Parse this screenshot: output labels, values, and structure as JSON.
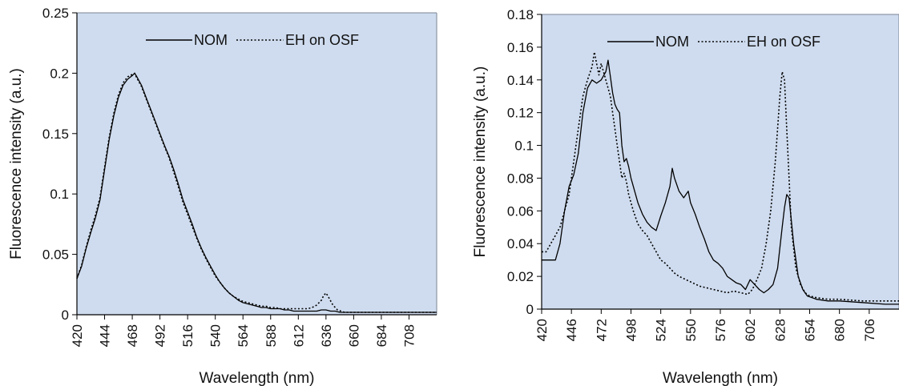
{
  "colors": {
    "plot_background": "#cfdcef",
    "line": "#000000",
    "frame": "#000000"
  },
  "chart_data": [
    {
      "type": "line",
      "title": "",
      "xlabel": "Wavelength (nm)",
      "ylabel": "Fluorescence intensity (a.u.)",
      "xlim": [
        420,
        732
      ],
      "ylim": [
        0,
        0.25
      ],
      "xticks": [
        420,
        444,
        468,
        492,
        516,
        540,
        564,
        588,
        612,
        636,
        660,
        684,
        708
      ],
      "xtick_labels": [
        "420",
        "444",
        "468",
        "492",
        "516",
        "540",
        "564",
        "588",
        "612",
        "636",
        "660",
        "684",
        "708"
      ],
      "yticks": [
        0,
        0.05,
        0.1,
        0.15,
        0.2,
        0.25
      ],
      "ytick_labels": [
        "0",
        "0.05",
        "0.1",
        "0.15",
        "0.2",
        "0.25"
      ],
      "legend": {
        "placement": "top-center",
        "entries": [
          "NOM",
          "EH on OSF"
        ]
      },
      "grid": false,
      "series": [
        {
          "name": "NOM",
          "style": "solid",
          "x": [
            420,
            424,
            428,
            432,
            436,
            440,
            444,
            448,
            452,
            456,
            460,
            464,
            468,
            470,
            472,
            476,
            480,
            484,
            488,
            492,
            496,
            500,
            504,
            508,
            512,
            516,
            520,
            524,
            528,
            532,
            536,
            540,
            544,
            548,
            552,
            556,
            560,
            564,
            568,
            572,
            576,
            580,
            584,
            588,
            592,
            596,
            600,
            604,
            608,
            612,
            616,
            620,
            624,
            628,
            632,
            636,
            640,
            644,
            648,
            652,
            660,
            680,
            700,
            720,
            732
          ],
          "y": [
            0.03,
            0.04,
            0.055,
            0.068,
            0.08,
            0.095,
            0.12,
            0.145,
            0.165,
            0.18,
            0.19,
            0.195,
            0.198,
            0.2,
            0.197,
            0.19,
            0.18,
            0.17,
            0.16,
            0.15,
            0.14,
            0.131,
            0.12,
            0.108,
            0.095,
            0.085,
            0.075,
            0.064,
            0.055,
            0.047,
            0.04,
            0.033,
            0.027,
            0.022,
            0.018,
            0.015,
            0.012,
            0.01,
            0.009,
            0.008,
            0.007,
            0.006,
            0.006,
            0.005,
            0.005,
            0.005,
            0.004,
            0.004,
            0.003,
            0.003,
            0.003,
            0.003,
            0.003,
            0.003,
            0.004,
            0.004,
            0.003,
            0.003,
            0.002,
            0.002,
            0.002,
            0.002,
            0.002,
            0.002,
            0.002
          ]
        },
        {
          "name": "EH on OSF",
          "style": "dotted",
          "x": [
            420,
            424,
            428,
            432,
            436,
            440,
            444,
            448,
            452,
            456,
            460,
            464,
            468,
            470,
            472,
            476,
            480,
            484,
            488,
            492,
            496,
            500,
            504,
            508,
            512,
            516,
            520,
            524,
            528,
            532,
            536,
            540,
            544,
            548,
            552,
            556,
            560,
            564,
            568,
            572,
            576,
            580,
            584,
            588,
            592,
            596,
            600,
            604,
            608,
            612,
            616,
            620,
            624,
            628,
            632,
            634,
            636,
            638,
            642,
            646,
            652,
            660,
            680,
            700,
            720,
            732
          ],
          "y": [
            0.03,
            0.041,
            0.056,
            0.07,
            0.082,
            0.097,
            0.122,
            0.147,
            0.167,
            0.182,
            0.192,
            0.197,
            0.199,
            0.2,
            0.196,
            0.189,
            0.179,
            0.169,
            0.159,
            0.149,
            0.139,
            0.13,
            0.118,
            0.106,
            0.093,
            0.083,
            0.073,
            0.063,
            0.054,
            0.046,
            0.039,
            0.032,
            0.027,
            0.022,
            0.018,
            0.015,
            0.013,
            0.011,
            0.01,
            0.009,
            0.008,
            0.007,
            0.007,
            0.006,
            0.006,
            0.005,
            0.005,
            0.005,
            0.005,
            0.005,
            0.005,
            0.005,
            0.006,
            0.008,
            0.012,
            0.016,
            0.018,
            0.015,
            0.008,
            0.004,
            0.002,
            0.002,
            0.002,
            0.002,
            0.002,
            0.002
          ]
        }
      ]
    },
    {
      "type": "line",
      "title": "",
      "xlabel": "Wavelength (nm)",
      "ylabel": "Fluorescence intensity (a.u.)",
      "xlim": [
        420,
        732
      ],
      "ylim": [
        0,
        0.18
      ],
      "xticks": [
        420,
        446,
        472,
        498,
        524,
        550,
        576,
        602,
        628,
        654,
        680,
        706
      ],
      "xtick_labels": [
        "420",
        "446",
        "472",
        "498",
        "524",
        "550",
        "576",
        "602",
        "628",
        "654",
        "680",
        "706"
      ],
      "yticks": [
        0,
        0.02,
        0.04,
        0.06,
        0.08,
        0.1,
        0.12,
        0.14,
        0.16,
        0.18
      ],
      "ytick_labels": [
        "0",
        "0.02",
        "0.04",
        "0.06",
        "0.08",
        "0.1",
        "0.12",
        "0.14",
        "0.16",
        "0.18"
      ],
      "legend": {
        "placement": "top-center",
        "entries": [
          "NOM",
          "EH on OSF"
        ]
      },
      "grid": false,
      "series": [
        {
          "name": "NOM",
          "style": "solid",
          "x": [
            420,
            424,
            428,
            432,
            436,
            440,
            444,
            448,
            452,
            456,
            460,
            464,
            468,
            472,
            476,
            478,
            480,
            482,
            484,
            486,
            488,
            490,
            492,
            494,
            496,
            498,
            500,
            504,
            508,
            512,
            516,
            520,
            524,
            528,
            532,
            534,
            536,
            540,
            544,
            546,
            548,
            550,
            554,
            558,
            562,
            566,
            570,
            574,
            578,
            582,
            586,
            590,
            594,
            598,
            602,
            606,
            610,
            614,
            618,
            622,
            626,
            630,
            632,
            634,
            636,
            640,
            644,
            648,
            652,
            656,
            660,
            670,
            680,
            700,
            720,
            732
          ],
          "y": [
            0.03,
            0.03,
            0.03,
            0.03,
            0.04,
            0.06,
            0.075,
            0.082,
            0.095,
            0.12,
            0.135,
            0.14,
            0.138,
            0.14,
            0.145,
            0.152,
            0.142,
            0.132,
            0.125,
            0.122,
            0.12,
            0.1,
            0.09,
            0.092,
            0.087,
            0.08,
            0.075,
            0.065,
            0.058,
            0.053,
            0.05,
            0.048,
            0.057,
            0.065,
            0.075,
            0.086,
            0.08,
            0.072,
            0.068,
            0.07,
            0.072,
            0.065,
            0.058,
            0.05,
            0.043,
            0.035,
            0.03,
            0.028,
            0.025,
            0.02,
            0.018,
            0.016,
            0.015,
            0.012,
            0.018,
            0.015,
            0.012,
            0.01,
            0.012,
            0.015,
            0.025,
            0.05,
            0.062,
            0.07,
            0.068,
            0.04,
            0.02,
            0.012,
            0.008,
            0.007,
            0.006,
            0.005,
            0.005,
            0.004,
            0.003,
            0.003
          ]
        },
        {
          "name": "EH on OSF",
          "style": "dotted",
          "x": [
            420,
            424,
            428,
            432,
            436,
            440,
            444,
            448,
            452,
            456,
            460,
            464,
            466,
            468,
            470,
            472,
            474,
            476,
            478,
            480,
            482,
            484,
            486,
            488,
            490,
            492,
            494,
            496,
            498,
            500,
            504,
            508,
            512,
            516,
            520,
            524,
            528,
            532,
            536,
            540,
            546,
            552,
            558,
            564,
            570,
            576,
            582,
            588,
            594,
            600,
            604,
            608,
            612,
            616,
            620,
            624,
            628,
            630,
            632,
            634,
            636,
            638,
            642,
            646,
            650,
            654,
            660,
            670,
            680,
            700,
            720,
            732
          ],
          "y": [
            0.035,
            0.035,
            0.04,
            0.045,
            0.05,
            0.06,
            0.07,
            0.09,
            0.11,
            0.13,
            0.14,
            0.148,
            0.157,
            0.15,
            0.143,
            0.15,
            0.145,
            0.14,
            0.135,
            0.13,
            0.12,
            0.11,
            0.1,
            0.09,
            0.08,
            0.083,
            0.078,
            0.07,
            0.065,
            0.06,
            0.052,
            0.048,
            0.045,
            0.04,
            0.035,
            0.03,
            0.028,
            0.025,
            0.022,
            0.02,
            0.018,
            0.016,
            0.014,
            0.013,
            0.012,
            0.011,
            0.01,
            0.011,
            0.01,
            0.009,
            0.012,
            0.018,
            0.025,
            0.04,
            0.06,
            0.09,
            0.13,
            0.145,
            0.14,
            0.11,
            0.08,
            0.05,
            0.025,
            0.015,
            0.01,
            0.008,
            0.007,
            0.006,
            0.006,
            0.005,
            0.005,
            0.005
          ]
        }
      ]
    }
  ]
}
